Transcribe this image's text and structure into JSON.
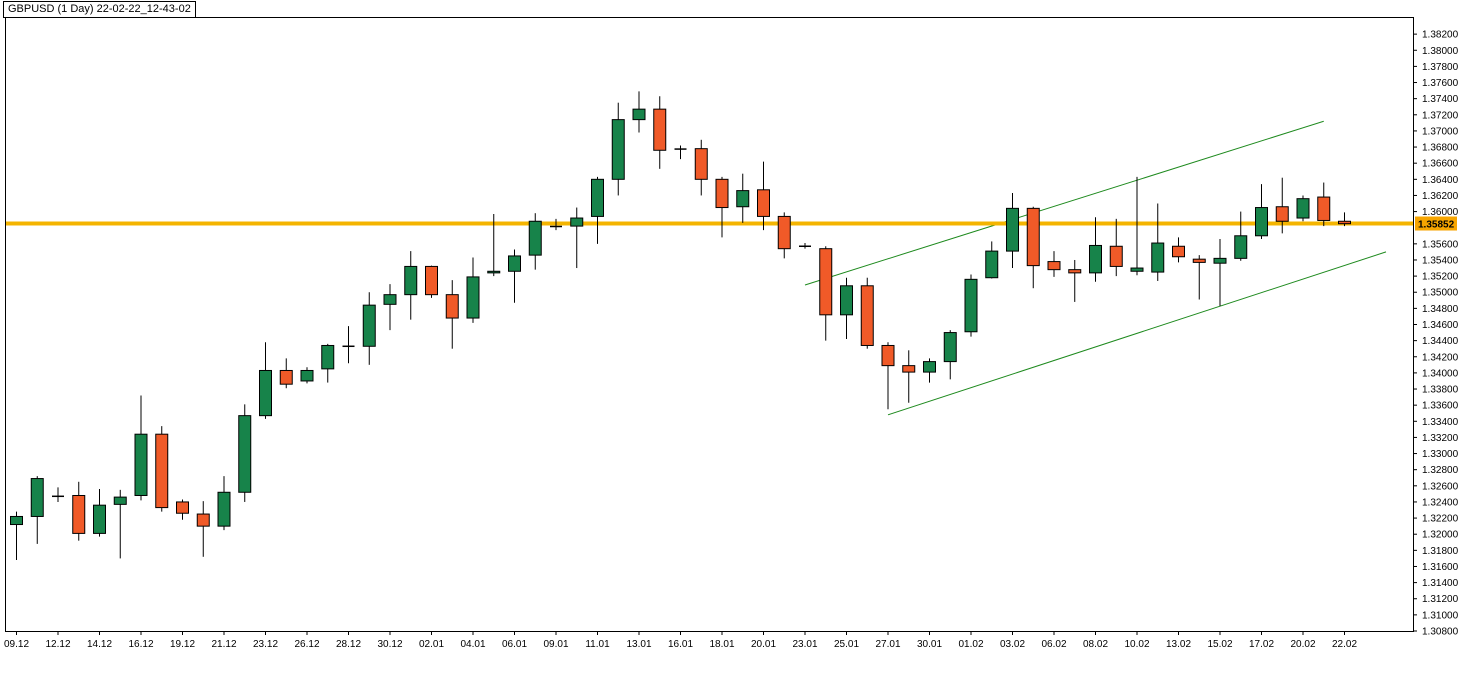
{
  "window": {
    "title": "GBPUSD (1 Day) 22-02-22_12-43-02"
  },
  "chart_data": {
    "type": "candlestick",
    "symbol": "GBPUSD",
    "timeframe": "1 Day",
    "ylim": [
      1.308,
      1.384
    ],
    "y_ticks": [
      "1.38200",
      "1.38000",
      "1.37800",
      "1.37600",
      "1.37400",
      "1.37200",
      "1.37000",
      "1.36800",
      "1.36600",
      "1.36400",
      "1.36200",
      "1.36000",
      "1.35600",
      "1.35400",
      "1.35200",
      "1.35000",
      "1.34800",
      "1.34600",
      "1.34400",
      "1.34200",
      "1.34000",
      "1.33800",
      "1.33600",
      "1.33400",
      "1.33200",
      "1.33000",
      "1.32800",
      "1.32600",
      "1.32400",
      "1.32200",
      "1.32000",
      "1.31800",
      "1.31600",
      "1.31400",
      "1.31200",
      "1.31000",
      "1.30800"
    ],
    "x_tick_labels": [
      "09.12",
      "12.12",
      "14.12",
      "16.12",
      "19.12",
      "21.12",
      "23.12",
      "26.12",
      "28.12",
      "30.12",
      "02.01",
      "04.01",
      "06.01",
      "09.01",
      "11.01",
      "13.01",
      "16.01",
      "18.01",
      "20.01",
      "23.01",
      "25.01",
      "27.01",
      "30.01",
      "01.02",
      "03.02",
      "06.02",
      "08.02",
      "10.02",
      "13.02",
      "15.02",
      "17.02",
      "20.02",
      "22.02"
    ],
    "current_price": {
      "value": 1.35852,
      "label": "1.35852"
    },
    "colors": {
      "bull": "#17834a",
      "bear": "#f05a28",
      "wick": "#000000",
      "channel": "#1e8a1e",
      "price_line": "#f4b400",
      "price_label_bg": "#f7a500"
    },
    "candles": [
      [
        1.3212,
        1.3228,
        1.3168,
        1.3222
      ],
      [
        1.3222,
        1.3272,
        1.3188,
        1.3269
      ],
      [
        1.3247,
        1.3258,
        1.324,
        1.3247
      ],
      [
        1.3248,
        1.3265,
        1.3192,
        1.3201
      ],
      [
        1.3201,
        1.3256,
        1.3197,
        1.3236
      ],
      [
        1.3237,
        1.3255,
        1.317,
        1.3246
      ],
      [
        1.3248,
        1.3372,
        1.3242,
        1.3324
      ],
      [
        1.3324,
        1.3334,
        1.3228,
        1.3233
      ],
      [
        1.324,
        1.3243,
        1.3218,
        1.3226
      ],
      [
        1.3225,
        1.3241,
        1.3172,
        1.321
      ],
      [
        1.321,
        1.3272,
        1.3205,
        1.3252
      ],
      [
        1.3252,
        1.3361,
        1.324,
        1.3347
      ],
      [
        1.3347,
        1.3438,
        1.3343,
        1.3403
      ],
      [
        1.3403,
        1.3418,
        1.3381,
        1.3386
      ],
      [
        1.339,
        1.3407,
        1.3387,
        1.3403
      ],
      [
        1.3405,
        1.3436,
        1.3388,
        1.3434
      ],
      [
        1.3433,
        1.3458,
        1.3412,
        1.3433
      ],
      [
        1.3433,
        1.35,
        1.341,
        1.3484
      ],
      [
        1.3485,
        1.351,
        1.3453,
        1.3497
      ],
      [
        1.3497,
        1.3551,
        1.3466,
        1.3532
      ],
      [
        1.3532,
        1.3533,
        1.3493,
        1.3497
      ],
      [
        1.3497,
        1.3515,
        1.343,
        1.3468
      ],
      [
        1.3468,
        1.3543,
        1.3462,
        1.3519
      ],
      [
        1.3524,
        1.3597,
        1.352,
        1.3526
      ],
      [
        1.3526,
        1.3553,
        1.3487,
        1.3545
      ],
      [
        1.3546,
        1.3598,
        1.3528,
        1.3588
      ],
      [
        1.3581,
        1.3591,
        1.3577,
        1.3582
      ],
      [
        1.3582,
        1.3605,
        1.353,
        1.3592
      ],
      [
        1.3594,
        1.3643,
        1.356,
        1.364
      ],
      [
        1.364,
        1.3735,
        1.362,
        1.3714
      ],
      [
        1.3714,
        1.3749,
        1.3698,
        1.3727
      ],
      [
        1.3727,
        1.3743,
        1.3653,
        1.3676
      ],
      [
        1.3678,
        1.3682,
        1.3665,
        1.3677
      ],
      [
        1.3678,
        1.3689,
        1.362,
        1.364
      ],
      [
        1.364,
        1.3643,
        1.3568,
        1.3605
      ],
      [
        1.3606,
        1.3647,
        1.3586,
        1.3626
      ],
      [
        1.3627,
        1.3662,
        1.3577,
        1.3594
      ],
      [
        1.3594,
        1.3599,
        1.3542,
        1.3554
      ],
      [
        1.3557,
        1.3561,
        1.3554,
        1.3557
      ],
      [
        1.3554,
        1.3557,
        1.344,
        1.3472
      ],
      [
        1.3472,
        1.3518,
        1.3442,
        1.3508
      ],
      [
        1.3508,
        1.3518,
        1.343,
        1.3434
      ],
      [
        1.3434,
        1.3438,
        1.3355,
        1.3409
      ],
      [
        1.3409,
        1.3428,
        1.3363,
        1.3401
      ],
      [
        1.3401,
        1.3418,
        1.3388,
        1.3414
      ],
      [
        1.3414,
        1.3453,
        1.3392,
        1.345
      ],
      [
        1.3451,
        1.3522,
        1.3445,
        1.3516
      ],
      [
        1.3518,
        1.3563,
        1.3517,
        1.3551
      ],
      [
        1.3551,
        1.3623,
        1.353,
        1.3604
      ],
      [
        1.3604,
        1.3606,
        1.3505,
        1.3533
      ],
      [
        1.3538,
        1.3551,
        1.3519,
        1.3528
      ],
      [
        1.3528,
        1.354,
        1.3488,
        1.3524
      ],
      [
        1.3524,
        1.3593,
        1.3513,
        1.3558
      ],
      [
        1.3557,
        1.3591,
        1.352,
        1.3532
      ],
      [
        1.3526,
        1.3643,
        1.3521,
        1.353
      ],
      [
        1.3525,
        1.361,
        1.3514,
        1.3561
      ],
      [
        1.3557,
        1.3568,
        1.3537,
        1.3544
      ],
      [
        1.3541,
        1.3546,
        1.3491,
        1.3537
      ],
      [
        1.3536,
        1.3566,
        1.3483,
        1.3542
      ],
      [
        1.3542,
        1.36,
        1.3539,
        1.357
      ],
      [
        1.357,
        1.3634,
        1.3566,
        1.3605
      ],
      [
        1.3606,
        1.3642,
        1.3573,
        1.3588
      ],
      [
        1.3592,
        1.362,
        1.3588,
        1.3616
      ],
      [
        1.3618,
        1.3636,
        1.3582,
        1.3589
      ],
      [
        1.3588,
        1.3599,
        1.3582,
        1.3585
      ]
    ],
    "channel_lines": [
      {
        "from": {
          "index": 38,
          "price": 1.3509
        },
        "to": {
          "index": 63,
          "price": 1.3712
        }
      },
      {
        "from": {
          "index": 42,
          "price": 1.3348
        },
        "to": {
          "index": 66,
          "price": 1.355
        }
      }
    ]
  }
}
